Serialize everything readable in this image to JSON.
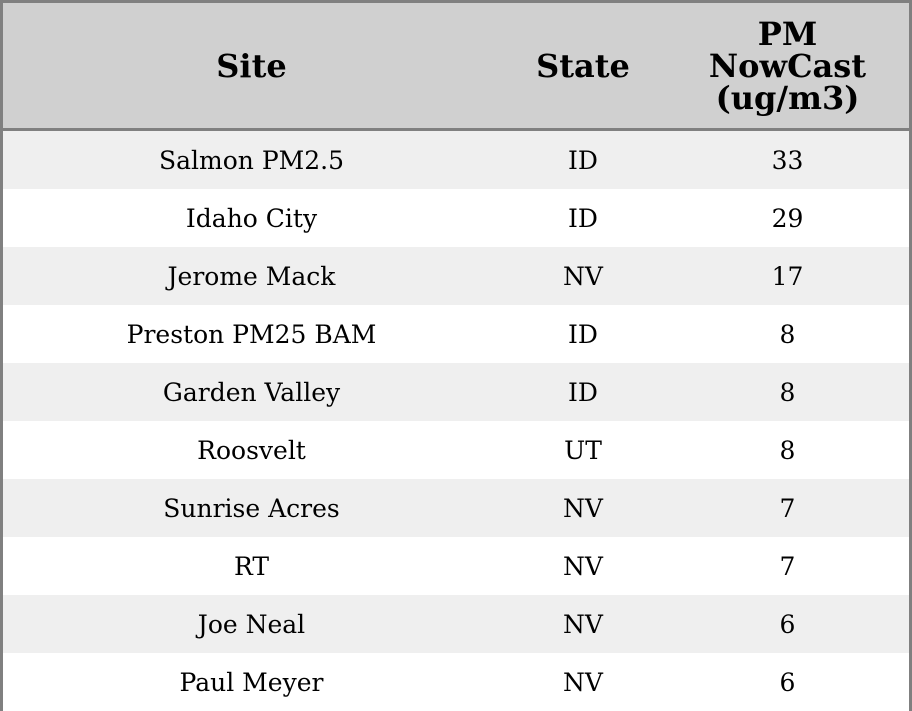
{
  "table": {
    "headers": [
      "Site",
      "State",
      "PM\nNowCast\n(ug/m3)"
    ],
    "header_lines": [
      "PM",
      "NowCast",
      "(ug/m3)"
    ],
    "rows": [
      [
        "Salmon PM2.5",
        "ID",
        "33"
      ],
      [
        "Idaho City",
        "ID",
        "29"
      ],
      [
        "Jerome Mack",
        "NV",
        "17"
      ],
      [
        "Preston PM25 BAM",
        "ID",
        "8"
      ],
      [
        "Garden Valley",
        "ID",
        "8"
      ],
      [
        "Roosvelt",
        "UT",
        "8"
      ],
      [
        "Sunrise Acres",
        "NV",
        "7"
      ],
      [
        "RT",
        "NV",
        "7"
      ],
      [
        "Joe Neal",
        "NV",
        "6"
      ],
      [
        "Paul Meyer",
        "NV",
        "6"
      ]
    ]
  },
  "colors": {
    "header_bg": "#d0d0d0",
    "border": "#808080",
    "row_alt": "#efefef"
  }
}
